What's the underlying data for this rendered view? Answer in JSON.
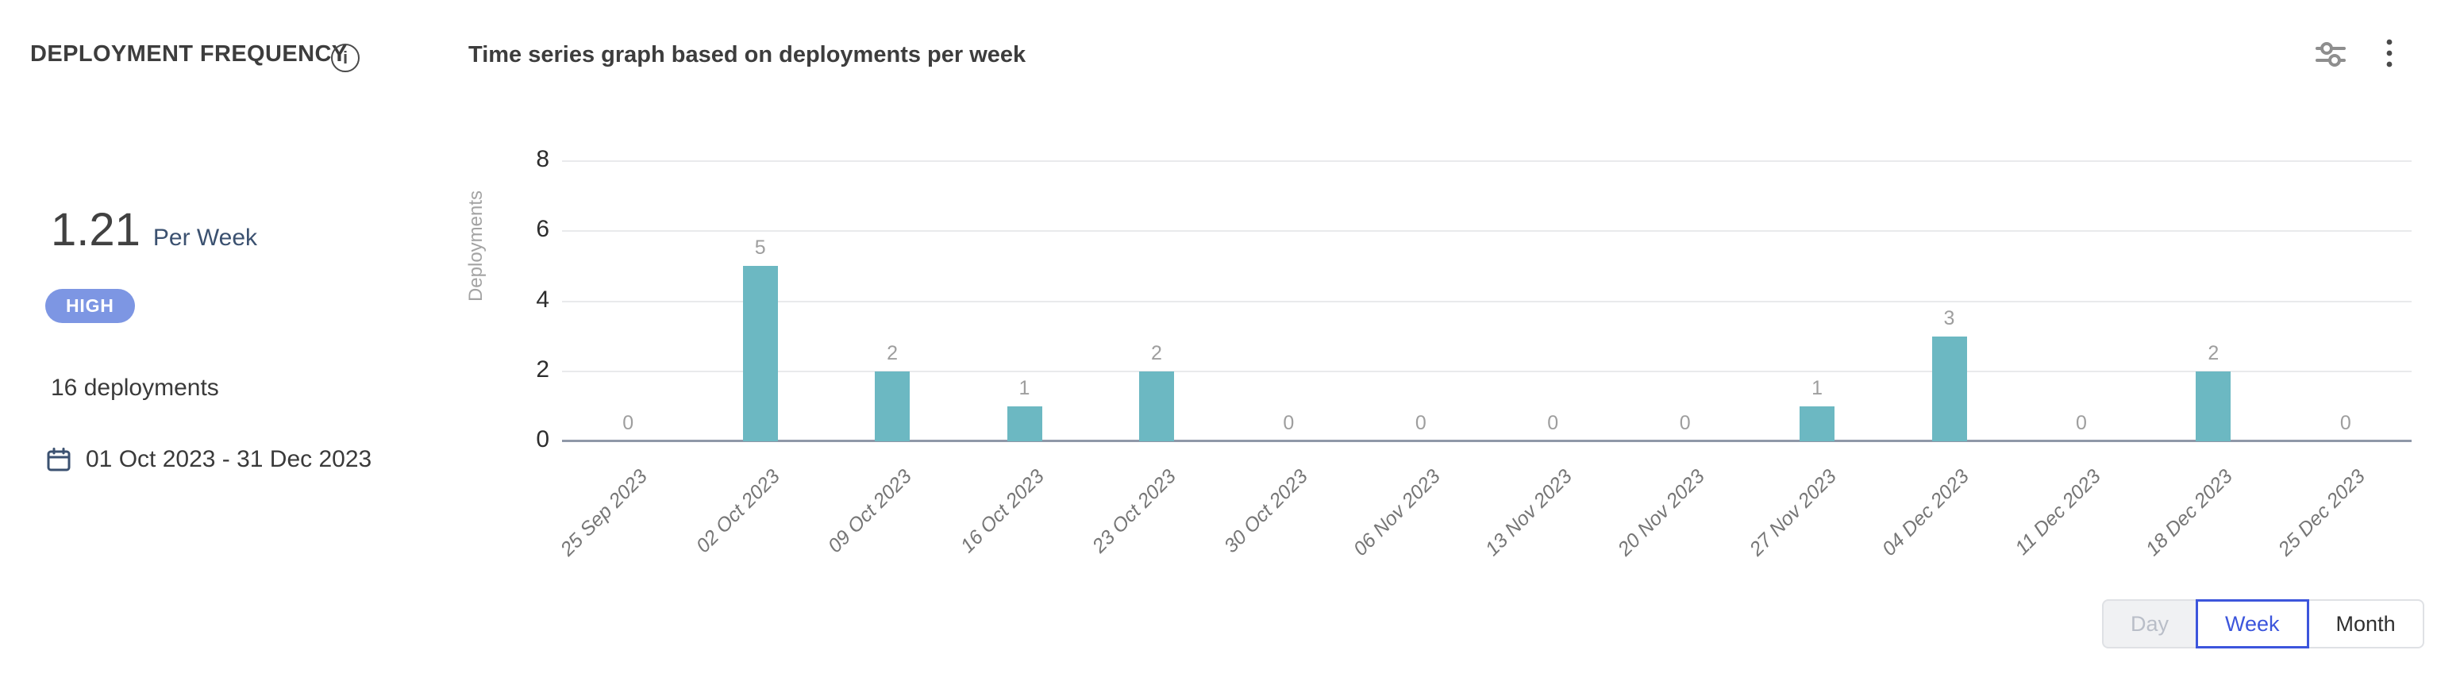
{
  "header": {
    "title": "DEPLOYMENT FREQUENCY",
    "subtitle": "Time series graph based on deployments per week",
    "icons": {
      "info": "info-icon",
      "filter": "sliders-icon",
      "menu": "kebab-menu-icon"
    }
  },
  "summary": {
    "value": "1.21",
    "unit": "Per Week",
    "badge": {
      "label": "HIGH",
      "color": "#7D96E3"
    },
    "total": "16 deployments",
    "date_range": "01 Oct 2023 - 31 Dec 2023"
  },
  "chart_data": {
    "type": "bar",
    "title": "Time series graph based on deployments per week",
    "xlabel": "",
    "ylabel": "Deployments",
    "categories": [
      "25 Sep 2023",
      "02 Oct 2023",
      "09 Oct 2023",
      "16 Oct 2023",
      "23 Oct 2023",
      "30 Oct 2023",
      "06 Nov 2023",
      "13 Nov 2023",
      "20 Nov 2023",
      "27 Nov 2023",
      "04 Dec 2023",
      "11 Dec 2023",
      "18 Dec 2023",
      "25 Dec 2023"
    ],
    "values": [
      0,
      5,
      2,
      1,
      2,
      0,
      0,
      0,
      0,
      1,
      3,
      0,
      2,
      0
    ],
    "ylim": [
      0,
      8
    ],
    "yticks": [
      0,
      2,
      4,
      6,
      8
    ],
    "grid": true,
    "value_labels": true,
    "legend": "none",
    "bar_color": "#6CB8C2"
  },
  "toggle": {
    "options": [
      {
        "label": "Day",
        "state": "disabled"
      },
      {
        "label": "Week",
        "state": "selected"
      },
      {
        "label": "Month",
        "state": "default"
      }
    ]
  },
  "colors": {
    "accent_blue": "#3C55DC",
    "bar_teal": "#6CB8C2",
    "badge_periwinkle": "#7D96E3",
    "baseline_gray": "#8F98A8",
    "gridline_gray": "#E9EAEC",
    "text_dark": "#3D3D3D",
    "text_navy": "#3B5170"
  }
}
